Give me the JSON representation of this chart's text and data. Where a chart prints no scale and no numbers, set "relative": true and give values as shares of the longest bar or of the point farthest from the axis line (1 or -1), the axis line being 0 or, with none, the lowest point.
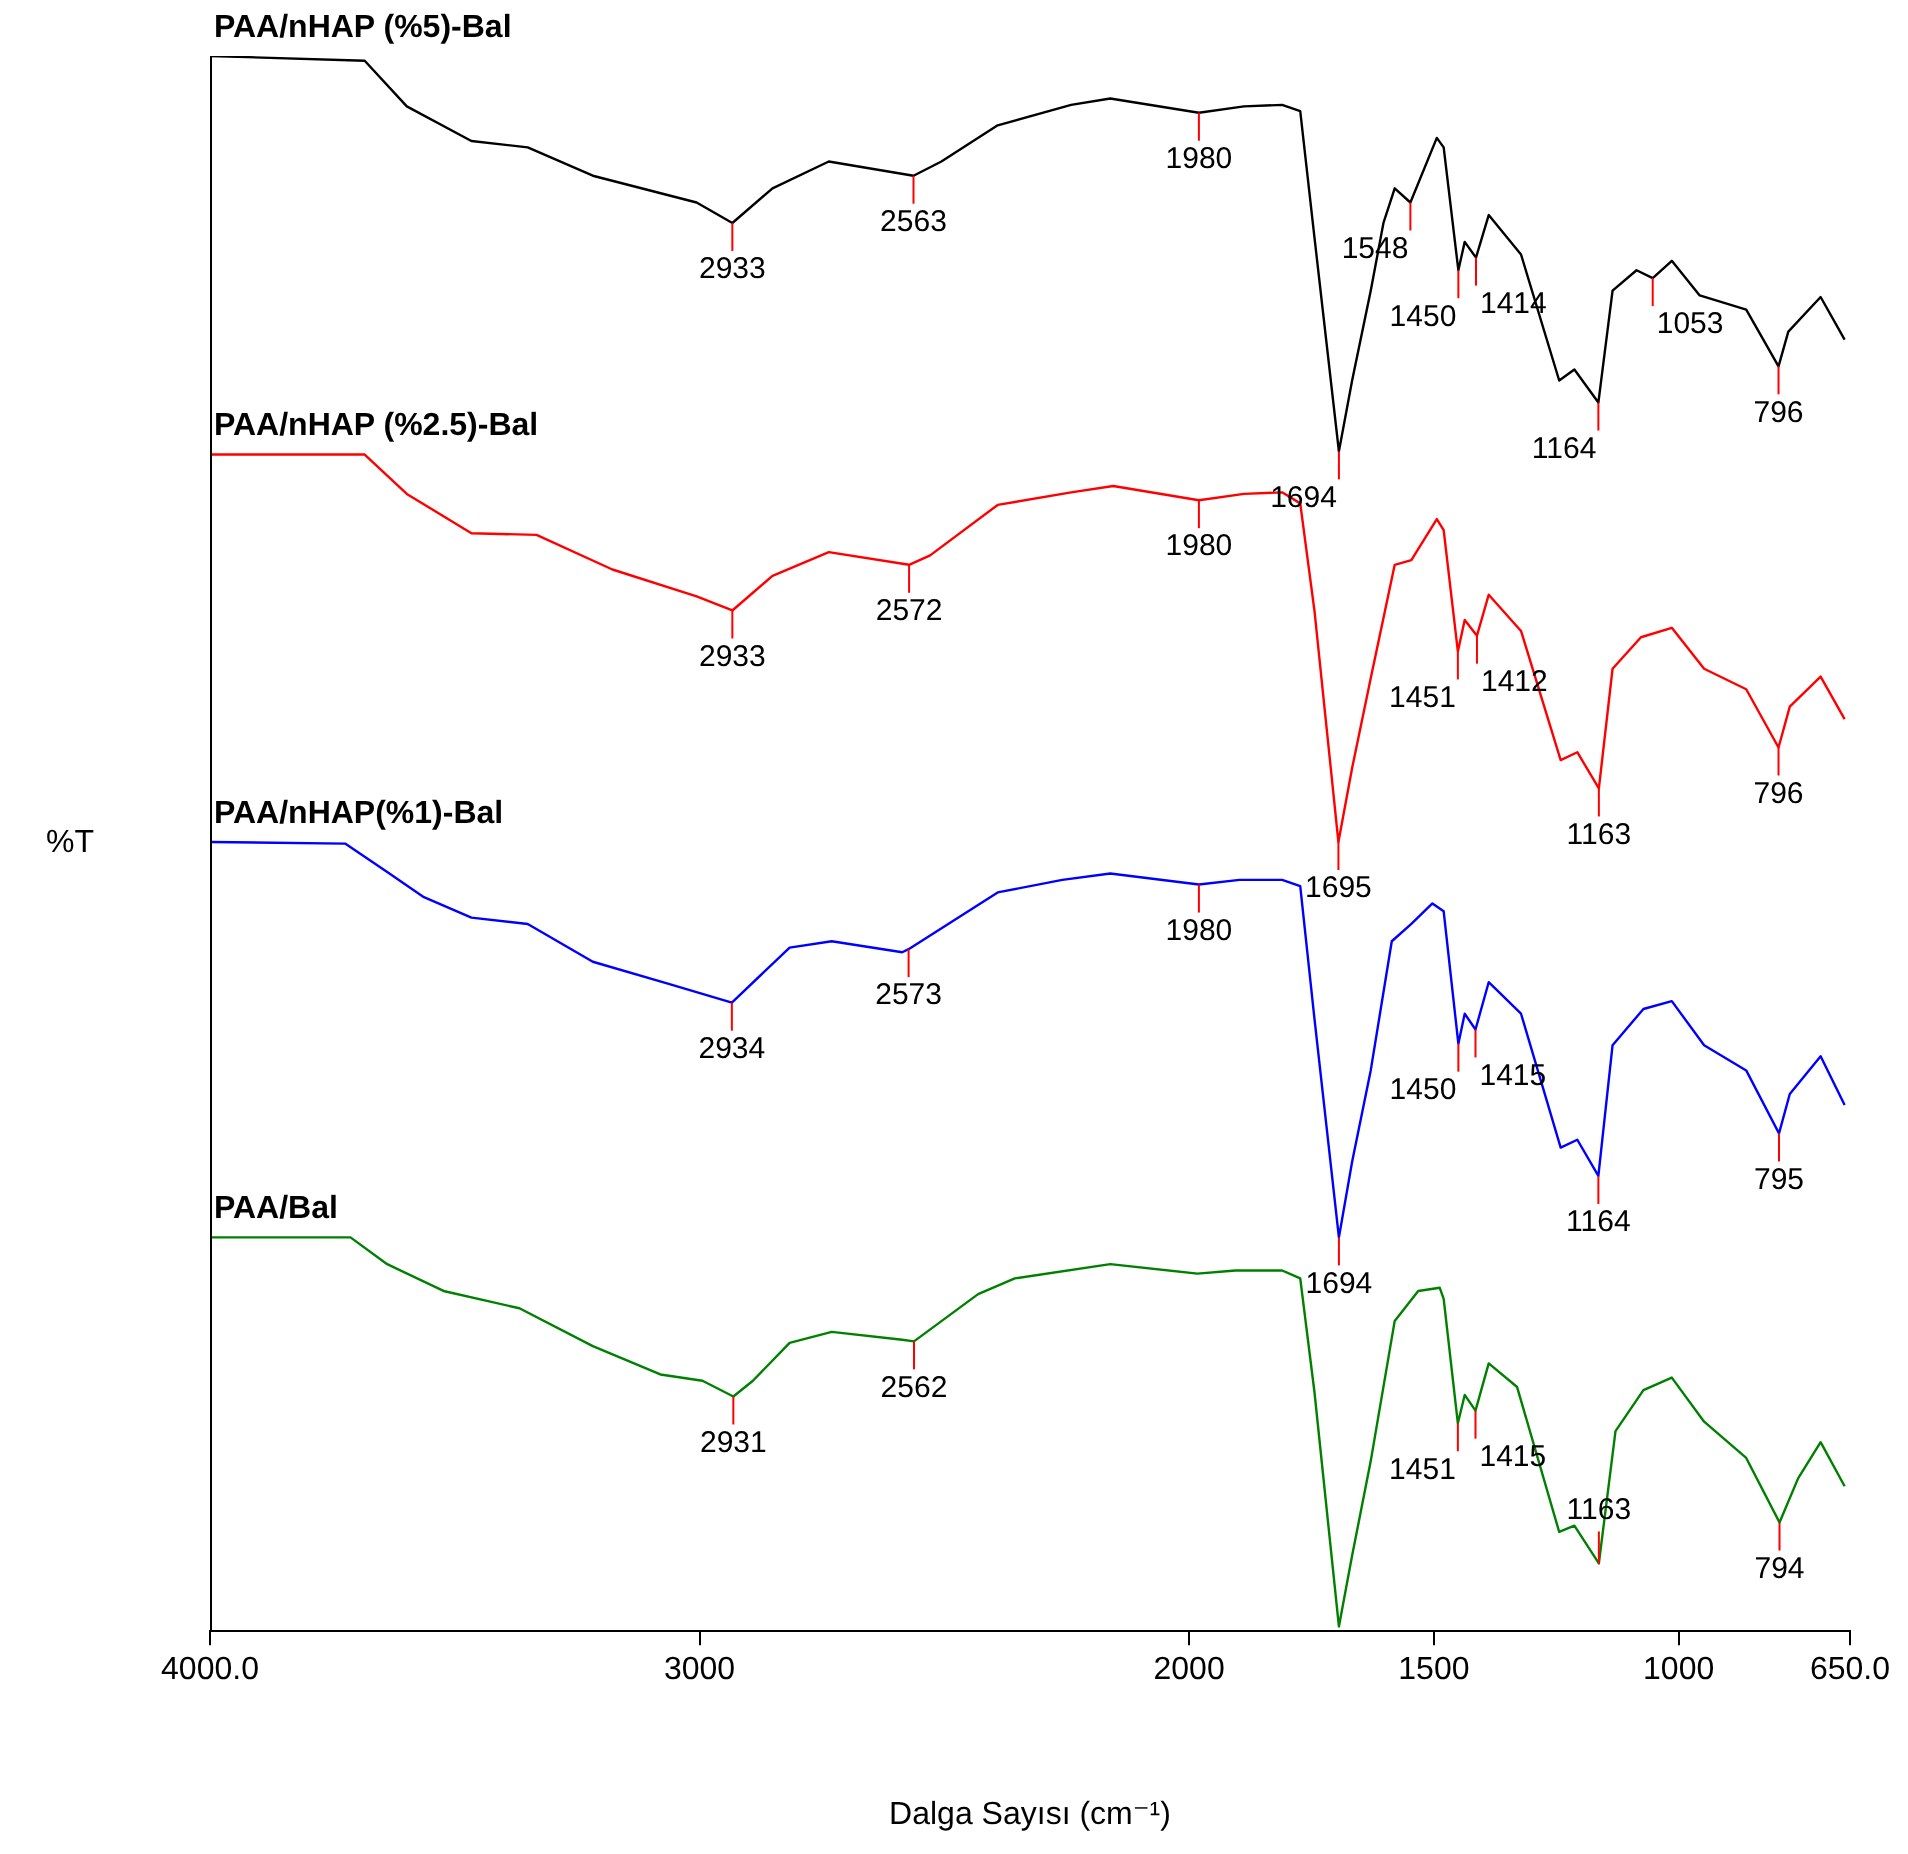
{
  "chart_data": {
    "type": "line",
    "relative": true,
    "ylabel": "%T",
    "xlabel": "Dalga Sayısı (cm⁻¹)",
    "xlim": [
      4000,
      650
    ],
    "xticks": [
      {
        "value": 4000,
        "label": "4000.0"
      },
      3000,
      2000,
      1500,
      1000,
      {
        "value": 650,
        "label": "650.0"
      }
    ],
    "legend": false,
    "series": [
      {
        "name": "PAA/nHAP (%5)-Bal",
        "color": "#000000",
        "x": [
          4000,
          3684,
          3598,
          3466,
          3351,
          3218,
          3006,
          2933,
          2851,
          2736,
          2563,
          2506,
          2391,
          2241,
          2161,
          1980,
          1888,
          1810,
          1773,
          1744,
          1694,
          1667,
          1629,
          1603,
          1580,
          1548,
          1494,
          1480,
          1450,
          1437,
          1414,
          1388,
          1322,
          1244,
          1213,
          1164,
          1135,
          1086,
          1053,
          1014,
          957,
          862,
          796,
          776,
          710,
          661
        ],
        "values": [
          1.0,
          0.997,
          0.968,
          0.946,
          0.942,
          0.924,
          0.907,
          0.894,
          0.916,
          0.933,
          0.924,
          0.933,
          0.956,
          0.969,
          0.973,
          0.964,
          0.968,
          0.969,
          0.965,
          0.885,
          0.749,
          0.794,
          0.851,
          0.894,
          0.916,
          0.907,
          0.948,
          0.942,
          0.864,
          0.882,
          0.872,
          0.899,
          0.874,
          0.794,
          0.801,
          0.78,
          0.851,
          0.864,
          0.859,
          0.87,
          0.848,
          0.839,
          0.803,
          0.825,
          0.847,
          0.82
        ]
      },
      {
        "name": "PAA/nHAP (%2.5)-Bal",
        "color": "#ff0000",
        "x": [
          4000,
          3684,
          3598,
          3466,
          3333,
          3178,
          3006,
          2933,
          2851,
          2736,
          2572,
          2529,
          2391,
          2241,
          2155,
          1980,
          1888,
          1810,
          1773,
          1744,
          1695,
          1667,
          1629,
          1580,
          1546,
          1494,
          1480,
          1451,
          1437,
          1412,
          1388,
          1322,
          1241,
          1207,
          1163,
          1135,
          1077,
          1014,
          948,
          862,
          796,
          773,
          710,
          661
        ],
        "values": [
          0.747,
          0.747,
          0.722,
          0.697,
          0.696,
          0.674,
          0.657,
          0.648,
          0.67,
          0.685,
          0.677,
          0.683,
          0.715,
          0.723,
          0.727,
          0.718,
          0.722,
          0.723,
          0.716,
          0.648,
          0.501,
          0.548,
          0.605,
          0.677,
          0.68,
          0.706,
          0.699,
          0.622,
          0.642,
          0.632,
          0.658,
          0.635,
          0.553,
          0.558,
          0.535,
          0.611,
          0.631,
          0.637,
          0.611,
          0.598,
          0.561,
          0.587,
          0.606,
          0.579
        ]
      },
      {
        "name": "PAA/nHAP(%1)-Bal",
        "color": "#0000ff",
        "x": [
          4000,
          3724,
          3638,
          3563,
          3466,
          3351,
          3218,
          3063,
          2934,
          2816,
          2730,
          2586,
          2573,
          2391,
          2259,
          2161,
          1980,
          1897,
          1810,
          1773,
          1744,
          1694,
          1667,
          1629,
          1586,
          1546,
          1503,
          1480,
          1450,
          1437,
          1415,
          1388,
          1322,
          1241,
          1207,
          1164,
          1135,
          1072,
          1014,
          948,
          862,
          795,
          773,
          710,
          661
        ],
        "values": [
          0.501,
          0.5,
          0.482,
          0.466,
          0.453,
          0.449,
          0.425,
          0.411,
          0.399,
          0.434,
          0.438,
          0.431,
          0.433,
          0.469,
          0.477,
          0.481,
          0.474,
          0.477,
          0.477,
          0.473,
          0.389,
          0.25,
          0.298,
          0.356,
          0.438,
          0.449,
          0.462,
          0.457,
          0.373,
          0.392,
          0.382,
          0.412,
          0.392,
          0.307,
          0.312,
          0.289,
          0.372,
          0.395,
          0.4,
          0.372,
          0.356,
          0.316,
          0.341,
          0.365,
          0.334
        ]
      },
      {
        "name": "PAA/Bal",
        "color": "#008000",
        "x": [
          4000,
          3713,
          3638,
          3523,
          3368,
          3218,
          3080,
          2994,
          2931,
          2891,
          2816,
          2730,
          2586,
          2562,
          2431,
          2356,
          2161,
          1983,
          1905,
          1810,
          1773,
          1744,
          1694,
          1667,
          1629,
          1580,
          1532,
          1488,
          1480,
          1451,
          1437,
          1415,
          1388,
          1330,
          1244,
          1213,
          1163,
          1129,
          1072,
          1014,
          948,
          862,
          794,
          756,
          710,
          661
        ],
        "values": [
          0.25,
          0.25,
          0.233,
          0.216,
          0.205,
          0.181,
          0.163,
          0.159,
          0.149,
          0.159,
          0.183,
          0.19,
          0.185,
          0.184,
          0.214,
          0.224,
          0.233,
          0.227,
          0.229,
          0.229,
          0.224,
          0.152,
          0.003,
          0.048,
          0.108,
          0.197,
          0.216,
          0.218,
          0.211,
          0.132,
          0.15,
          0.14,
          0.17,
          0.155,
          0.063,
          0.067,
          0.043,
          0.127,
          0.153,
          0.161,
          0.133,
          0.11,
          0.069,
          0.097,
          0.12,
          0.092
        ]
      }
    ],
    "annotations": [
      {
        "text": "2933",
        "x": 2933,
        "y": 0.894
      },
      {
        "text": "2563",
        "x": 2563,
        "y": 0.924
      },
      {
        "text": "1980",
        "x": 1980,
        "y": 0.964
      },
      {
        "text": "1694",
        "x": 1694,
        "y": 0.749
      },
      {
        "text": "1548",
        "x": 1548,
        "y": 0.907
      },
      {
        "text": "1450",
        "x": 1450,
        "y": 0.864
      },
      {
        "text": "1414",
        "x": 1414,
        "y": 0.872
      },
      {
        "text": "1164",
        "x": 1164,
        "y": 0.78
      },
      {
        "text": "1053",
        "x": 1053,
        "y": 0.859
      },
      {
        "text": "796",
        "x": 796,
        "y": 0.803
      },
      {
        "text": "2933",
        "x": 2933,
        "y": 0.648
      },
      {
        "text": "2572",
        "x": 2572,
        "y": 0.677
      },
      {
        "text": "1980",
        "x": 1980,
        "y": 0.718
      },
      {
        "text": "1695",
        "x": 1695,
        "y": 0.501
      },
      {
        "text": "1451",
        "x": 1451,
        "y": 0.622
      },
      {
        "text": "1412",
        "x": 1412,
        "y": 0.632
      },
      {
        "text": "1163",
        "x": 1163,
        "y": 0.535
      },
      {
        "text": "796",
        "x": 796,
        "y": 0.561
      },
      {
        "text": "2934",
        "x": 2934,
        "y": 0.399
      },
      {
        "text": "2573",
        "x": 2573,
        "y": 0.433
      },
      {
        "text": "1980",
        "x": 1980,
        "y": 0.474
      },
      {
        "text": "1694",
        "x": 1694,
        "y": 0.25
      },
      {
        "text": "1450",
        "x": 1450,
        "y": 0.373
      },
      {
        "text": "1415",
        "x": 1415,
        "y": 0.382
      },
      {
        "text": "1164",
        "x": 1164,
        "y": 0.289
      },
      {
        "text": "795",
        "x": 795,
        "y": 0.316
      },
      {
        "text": "2931",
        "x": 2931,
        "y": 0.149
      },
      {
        "text": "2562",
        "x": 2562,
        "y": 0.184
      },
      {
        "text": "1451",
        "x": 1451,
        "y": 0.132
      },
      {
        "text": "1415",
        "x": 1415,
        "y": 0.14
      },
      {
        "text": "1163",
        "x": 1163,
        "y": 0.043
      },
      {
        "text": "794",
        "x": 794,
        "y": 0.069
      }
    ]
  }
}
